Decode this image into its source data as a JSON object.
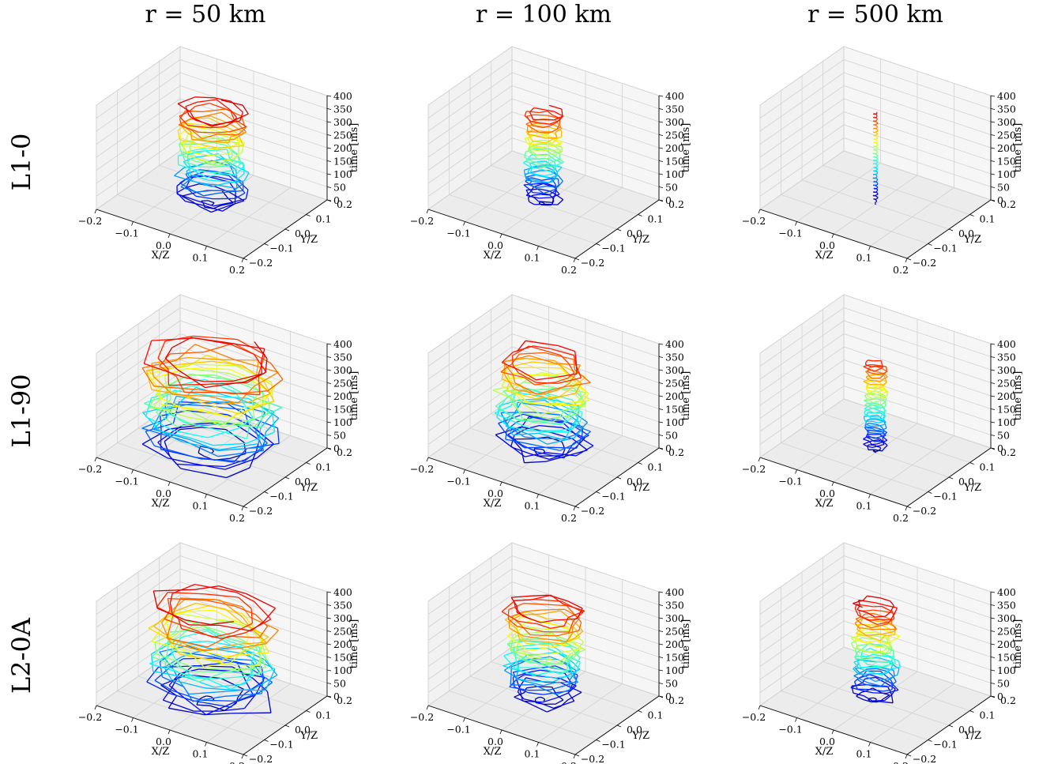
{
  "figure": {
    "column_titles": [
      "r = 50 km",
      "r = 100 km",
      "r = 500 km"
    ],
    "row_labels": [
      "L1-0",
      "L1-90",
      "L2-0A"
    ]
  },
  "chart_data": {
    "type": "line3d",
    "title": "",
    "xlabel": "X/Z",
    "ylabel": "Y/Z",
    "zlabel": "time [ms]",
    "xlim": [
      -0.2,
      0.2
    ],
    "ylim": [
      -0.2,
      0.2
    ],
    "zlim": [
      0,
      400
    ],
    "x_ticks": [
      "−0.2",
      "−0.1",
      "0.0",
      "0.1",
      "0.2"
    ],
    "y_ticks": [
      "−0.2",
      "−0.1",
      "0.0",
      "0.1",
      "0.2"
    ],
    "z_ticks": [
      "0",
      "50",
      "100",
      "150",
      "200",
      "250",
      "300",
      "350",
      "400"
    ],
    "colormap": "jet (blue at t=0 to dark red at t=400 ms)",
    "grid": true,
    "panels": [
      {
        "row": "L1-0",
        "column": "r = 50 km",
        "trajectory_radius": 0.09,
        "t_end_ms": 370
      },
      {
        "row": "L1-0",
        "column": "r = 100 km",
        "trajectory_radius": 0.05,
        "t_end_ms": 355
      },
      {
        "row": "L1-0",
        "column": "r = 500 km",
        "trajectory_radius": 0.006,
        "t_end_ms": 355
      },
      {
        "row": "L1-90",
        "column": "r = 50 km",
        "trajectory_radius": 0.17,
        "t_end_ms": 370
      },
      {
        "row": "L1-90",
        "column": "r = 100 km",
        "trajectory_radius": 0.12,
        "t_end_ms": 355
      },
      {
        "row": "L1-90",
        "column": "r = 500 km",
        "trajectory_radius": 0.03,
        "t_end_ms": 345
      },
      {
        "row": "L2-0A",
        "column": "r = 50 km",
        "trajectory_radius": 0.16,
        "t_end_ms": 370
      },
      {
        "row": "L2-0A",
        "column": "r = 100 km",
        "trajectory_radius": 0.1,
        "t_end_ms": 365
      },
      {
        "row": "L2-0A",
        "column": "r = 500 km",
        "trajectory_radius": 0.06,
        "t_end_ms": 370
      }
    ]
  }
}
